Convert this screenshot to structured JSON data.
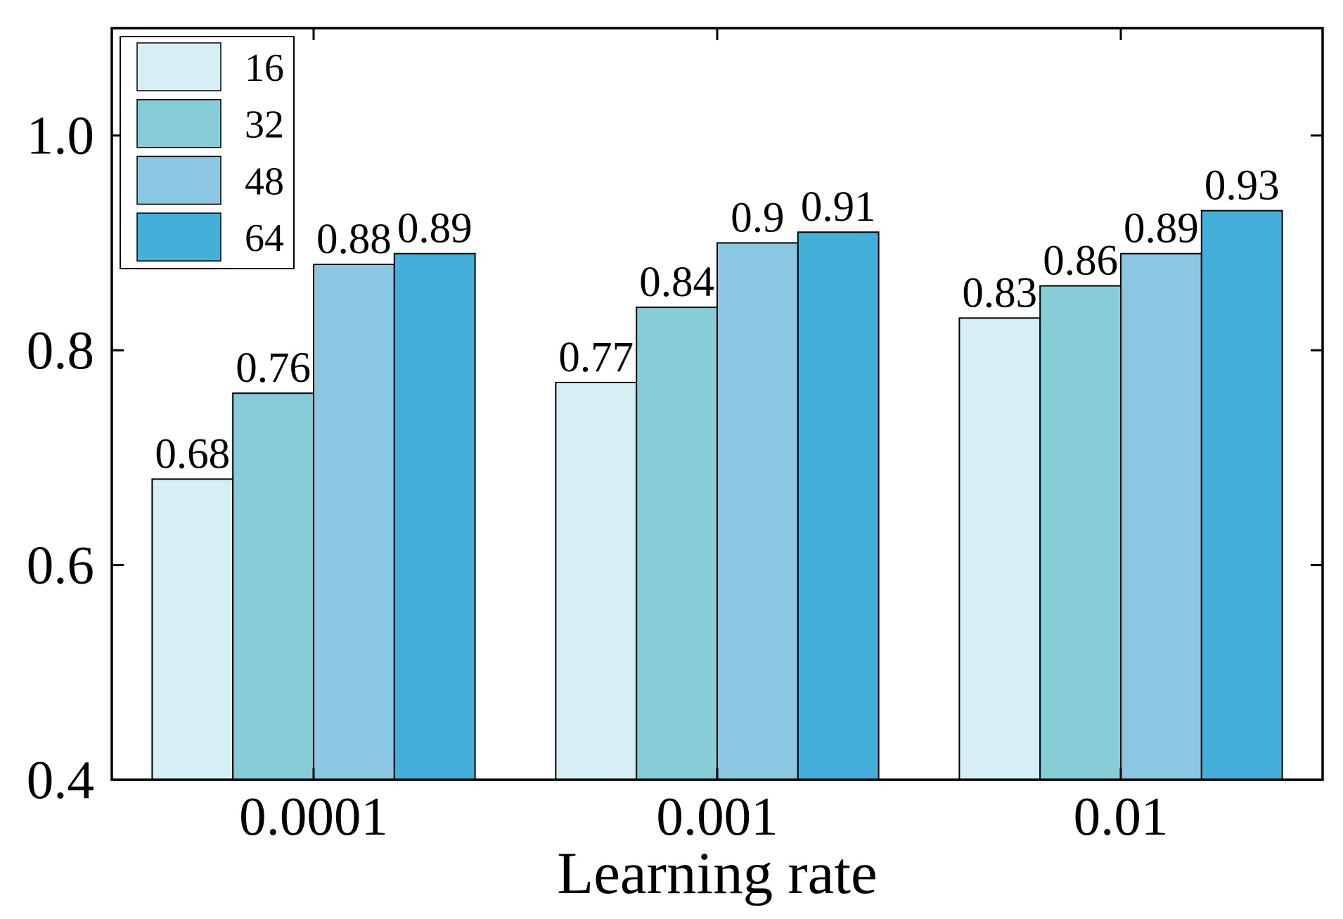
{
  "chart_data": {
    "type": "bar",
    "xlabel": "Learning rate",
    "categories": [
      "0.0001",
      "0.001",
      "0.01"
    ],
    "series": [
      {
        "name": "16",
        "color": "#d5eff4",
        "values": [
          0.68,
          0.77,
          0.83
        ]
      },
      {
        "name": "32",
        "color": "#87cdd7",
        "values": [
          0.76,
          0.84,
          0.86
        ]
      },
      {
        "name": "48",
        "color": "#8bc7e2",
        "values": [
          0.88,
          0.9,
          0.89
        ]
      },
      {
        "name": "64",
        "color": "#44afd9",
        "values": [
          0.89,
          0.91,
          0.93
        ]
      }
    ],
    "ylim": [
      0.4,
      1.1
    ],
    "yticks": [
      0.4,
      0.6,
      0.8,
      1.0
    ],
    "ytick_labels": [
      "0.4",
      "0.6",
      "0.8",
      "1.0"
    ],
    "legend": {
      "position": "top-left"
    },
    "grid": false,
    "axis_color": "#000000"
  }
}
